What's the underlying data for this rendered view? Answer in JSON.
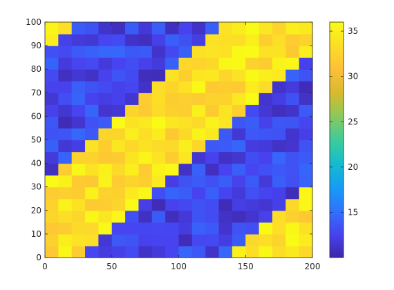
{
  "chart_data": {
    "type": "heatmap",
    "title": "",
    "xlabel": "",
    "ylabel": "",
    "xlim": [
      0,
      200
    ],
    "ylim": [
      0,
      100
    ],
    "x_ticks": [
      "0",
      "50",
      "100",
      "150",
      "200"
    ],
    "y_ticks": [
      "0",
      "10",
      "20",
      "30",
      "40",
      "50",
      "60",
      "70",
      "80",
      "90",
      "100"
    ],
    "grid_size": {
      "cols": 20,
      "rows": 20
    },
    "color_limits": [
      10,
      36
    ],
    "colorbar": {
      "label": "",
      "ticks": [
        "15",
        "20",
        "25",
        "30",
        "35"
      ],
      "tick_values": [
        15,
        20,
        25,
        30,
        35
      ],
      "colormap": [
        "#3e26a8",
        "#4743f0",
        "#2f73fe",
        "#169df4",
        "#14bdcd",
        "#3ecb9b",
        "#8ac85b",
        "#d7ba2e",
        "#fdc038",
        "#fcdd27",
        "#f9fb15"
      ]
    },
    "band_description": "diagonal bands of high values (~33-36) alternating with low values (~11-14)"
  }
}
